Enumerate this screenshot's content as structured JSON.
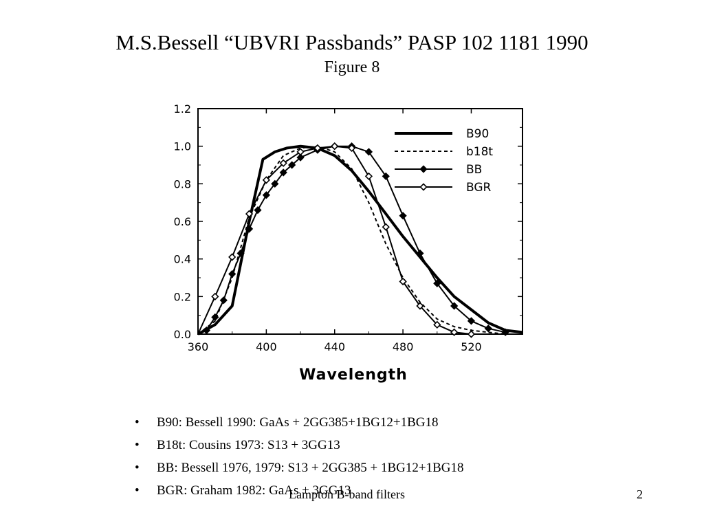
{
  "slide": {
    "title": "M.S.Bessell “UBVRI Passbands” PASP 102 1181 1990",
    "subtitle": "Figure 8",
    "bullets": [
      "B90: Bessell 1990: GaAs + 2GG385+1BG12+1BG18",
      "B18t: Cousins 1973: S13 + 3GG13",
      "BB: Bessell 1976, 1979: S13 + 2GG385 + 1BG12+1BG18",
      "BGR: Graham 1982: GaAs + 3GG13"
    ],
    "footer_left": "Lampton B-band filters",
    "page_number": "2"
  },
  "chart_data": {
    "type": "line",
    "title": "",
    "xlabel": "Wavelength",
    "ylabel": "",
    "xlim": [
      360,
      550
    ],
    "ylim": [
      0,
      1.2
    ],
    "x_ticks": [
      360,
      400,
      440,
      480,
      520
    ],
    "y_ticks": [
      0.0,
      0.2,
      0.4,
      0.6,
      0.8,
      1.0,
      1.2
    ],
    "y_tick_labels": [
      "0.0",
      "0.2",
      "0.4",
      "0.6",
      "0.8",
      "1.0",
      "1.2"
    ],
    "legend_position": "top-right",
    "grid": false,
    "series": [
      {
        "name": "B90",
        "style": "thick-solid",
        "x": [
          360,
          370,
          380,
          390,
          398,
          405,
          412,
          420,
          430,
          440,
          450,
          460,
          470,
          480,
          490,
          500,
          510,
          520,
          530,
          540,
          550
        ],
        "y": [
          0.0,
          0.05,
          0.15,
          0.6,
          0.93,
          0.97,
          0.99,
          1.0,
          0.99,
          0.95,
          0.87,
          0.76,
          0.64,
          0.52,
          0.41,
          0.3,
          0.2,
          0.13,
          0.06,
          0.02,
          0.01
        ]
      },
      {
        "name": "b18t",
        "style": "dashed",
        "x": [
          360,
          370,
          380,
          390,
          400,
          410,
          420,
          430,
          440,
          450,
          460,
          470,
          480,
          490,
          500,
          510,
          520,
          530,
          540,
          550
        ],
        "y": [
          0.0,
          0.07,
          0.3,
          0.62,
          0.82,
          0.95,
          0.99,
          1.0,
          0.97,
          0.88,
          0.7,
          0.48,
          0.3,
          0.17,
          0.08,
          0.04,
          0.02,
          0.01,
          0.0,
          0.0
        ]
      },
      {
        "name": "BB",
        "style": "solid-filled-diamonds",
        "x": [
          360,
          365,
          370,
          375,
          380,
          385,
          390,
          395,
          400,
          405,
          410,
          415,
          420,
          430,
          440,
          450,
          460,
          470,
          480,
          490,
          500,
          510,
          520,
          530,
          540
        ],
        "y": [
          0.0,
          0.02,
          0.09,
          0.18,
          0.32,
          0.43,
          0.56,
          0.66,
          0.74,
          0.8,
          0.86,
          0.9,
          0.94,
          0.98,
          1.0,
          1.0,
          0.97,
          0.84,
          0.63,
          0.43,
          0.27,
          0.15,
          0.07,
          0.03,
          0.01
        ]
      },
      {
        "name": "BGR",
        "style": "solid-open-diamonds",
        "x": [
          360,
          370,
          380,
          390,
          400,
          410,
          420,
          430,
          440,
          450,
          460,
          470,
          480,
          490,
          500,
          510,
          520
        ],
        "y": [
          0.0,
          0.2,
          0.41,
          0.64,
          0.82,
          0.91,
          0.97,
          0.99,
          1.0,
          0.99,
          0.84,
          0.57,
          0.28,
          0.15,
          0.05,
          0.01,
          0.0
        ]
      }
    ]
  }
}
